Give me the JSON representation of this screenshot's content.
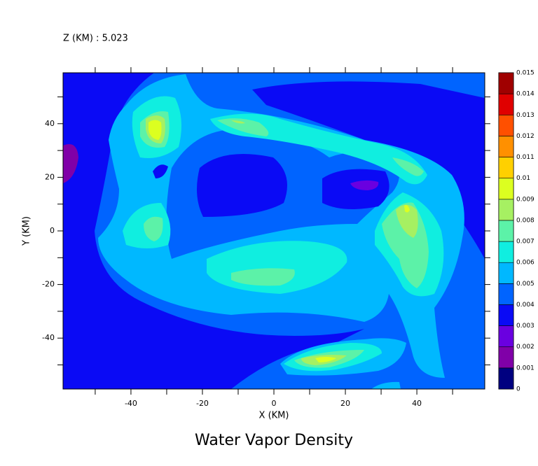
{
  "chart_data": {
    "type": "contour",
    "title": "Water Vapor Density",
    "subtitle": "Z (KM) : 5.023",
    "x_label": "X (KM)",
    "y_label": "Y (KM)",
    "xlim": [
      -59,
      59
    ],
    "ylim": [
      -59,
      59
    ],
    "xticks": [
      -40,
      -20,
      0,
      20,
      40
    ],
    "yticks": [
      -40,
      -20,
      0,
      20,
      40
    ],
    "xminorticks": [
      -50,
      -30,
      -10,
      10,
      30,
      50
    ],
    "yminorticks": [
      -50,
      -30,
      -10,
      10,
      30,
      50
    ],
    "levels": [
      0,
      0.001,
      0.002,
      0.003,
      0.004,
      0.005,
      0.006,
      0.007,
      0.008,
      0.009,
      0.01,
      0.011,
      0.012,
      0.013,
      0.014,
      0.015
    ],
    "colors": [
      "#000080",
      "#8000a8",
      "#6a00e0",
      "#0a0af5",
      "#0064ff",
      "#00b8ff",
      "#10eee0",
      "#5cf2a8",
      "#a6f062",
      "#dcff20",
      "#ffd000",
      "#ff9000",
      "#ff5000",
      "#e00000",
      "#a00000"
    ]
  }
}
